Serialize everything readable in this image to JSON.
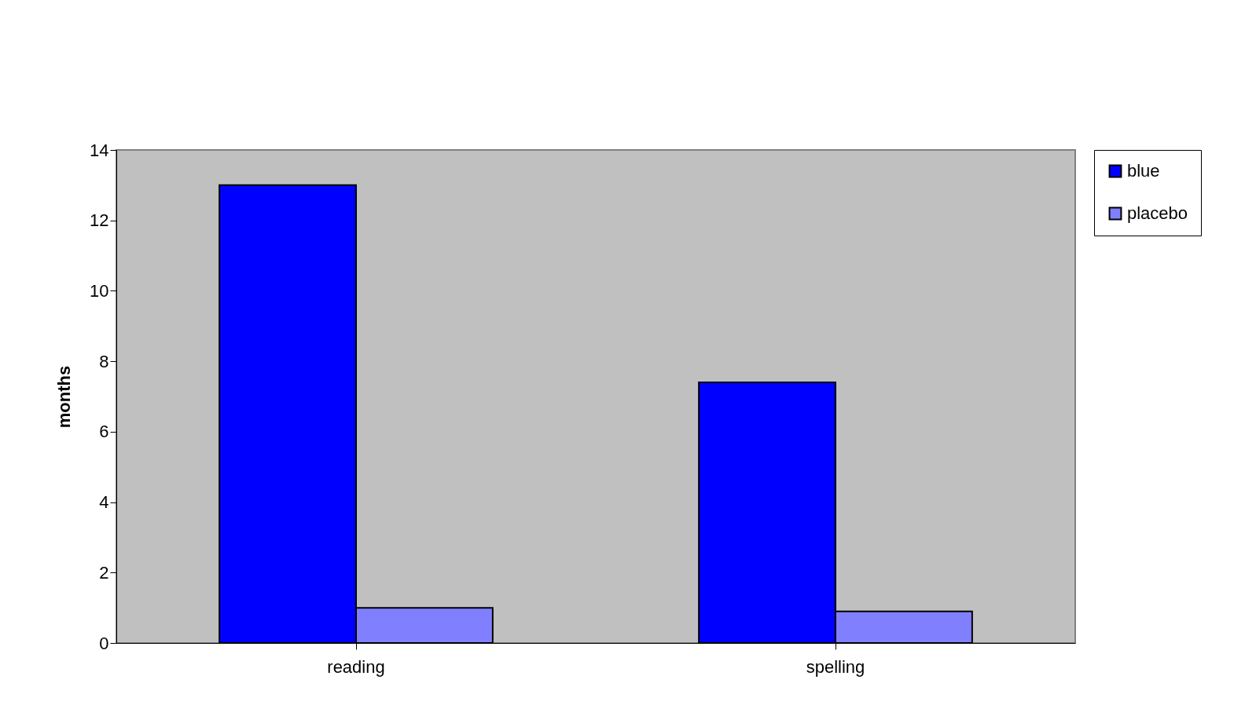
{
  "chart_data": {
    "type": "bar",
    "ylabel": "months",
    "categories": [
      "reading",
      "spelling"
    ],
    "series": [
      {
        "name": "blue",
        "color": "#0000ff",
        "values": [
          13,
          7.4
        ]
      },
      {
        "name": "placebo",
        "color": "#8080ff",
        "values": [
          1,
          0.9
        ]
      }
    ],
    "ylim": [
      0,
      14
    ],
    "yticks": [
      0,
      2,
      4,
      6,
      8,
      10,
      12,
      14
    ],
    "grid": false,
    "legend": "right"
  }
}
